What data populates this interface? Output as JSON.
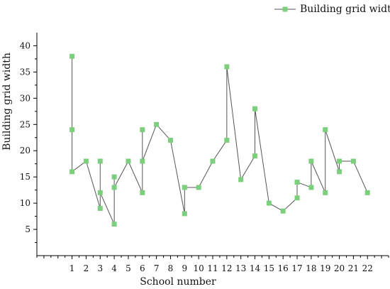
{
  "chart_data": {
    "type": "line",
    "xlabel": "School number",
    "ylabel": "Building grid width",
    "x_ticks": [
      1,
      2,
      3,
      4,
      5,
      6,
      7,
      8,
      9,
      10,
      11,
      12,
      13,
      14,
      15,
      16,
      17,
      18,
      19,
      20,
      21,
      22
    ],
    "y_ticks": [
      5,
      10,
      15,
      20,
      25,
      30,
      35,
      40
    ],
    "xlim": [
      -1.5,
      23.5
    ],
    "ylim": [
      0,
      42.5
    ],
    "legend_position": "top-right",
    "series": [
      {
        "name": "Building grid width",
        "color": "#7ccf7c",
        "line_color": "#555555",
        "points": [
          [
            1,
            38
          ],
          [
            1,
            24
          ],
          [
            1,
            16
          ],
          [
            2,
            18
          ],
          [
            3,
            9
          ],
          [
            3,
            18
          ],
          [
            3,
            12
          ],
          [
            4,
            6
          ],
          [
            4,
            15
          ],
          [
            4,
            13
          ],
          [
            5,
            18
          ],
          [
            6,
            12
          ],
          [
            6,
            24
          ],
          [
            6,
            18
          ],
          [
            7,
            25
          ],
          [
            8,
            22
          ],
          [
            9,
            8
          ],
          [
            9,
            13
          ],
          [
            10,
            13
          ],
          [
            11,
            18
          ],
          [
            12,
            22
          ],
          [
            12,
            36
          ],
          [
            13,
            14.5
          ],
          [
            14,
            19
          ],
          [
            14,
            28
          ],
          [
            15,
            10
          ],
          [
            16,
            8.5
          ],
          [
            17,
            11
          ],
          [
            17,
            14
          ],
          [
            18,
            13
          ],
          [
            18,
            18
          ],
          [
            19,
            12
          ],
          [
            19,
            24
          ],
          [
            20,
            16
          ],
          [
            20,
            18
          ],
          [
            21,
            18
          ],
          [
            22,
            12
          ]
        ]
      }
    ]
  }
}
